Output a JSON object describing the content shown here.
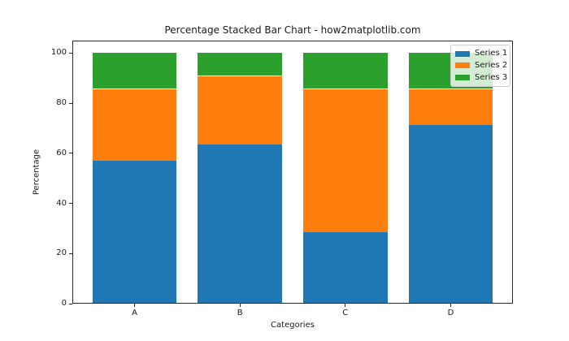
{
  "chart_data": {
    "type": "bar",
    "stacked": true,
    "percentage": true,
    "title": "Percentage Stacked Bar Chart - how2matplotlib.com",
    "xlabel": "Categories",
    "ylabel": "Percentage",
    "categories": [
      "A",
      "B",
      "C",
      "D"
    ],
    "series": [
      {
        "name": "Series 1",
        "color": "#1f77b4",
        "values": [
          57.14,
          63.64,
          28.57,
          71.43
        ]
      },
      {
        "name": "Series 2",
        "color": "#ff7f0e",
        "values": [
          28.57,
          27.27,
          57.14,
          14.29
        ]
      },
      {
        "name": "Series 3",
        "color": "#2ca02c",
        "values": [
          14.29,
          9.09,
          14.29,
          14.29
        ]
      }
    ],
    "yticks": [
      0,
      20,
      40,
      60,
      80,
      100
    ],
    "ylim": [
      0,
      105
    ],
    "grid": false,
    "legend_position": "upper right",
    "background_color": "#ffffff",
    "spine_color": "#262626"
  }
}
